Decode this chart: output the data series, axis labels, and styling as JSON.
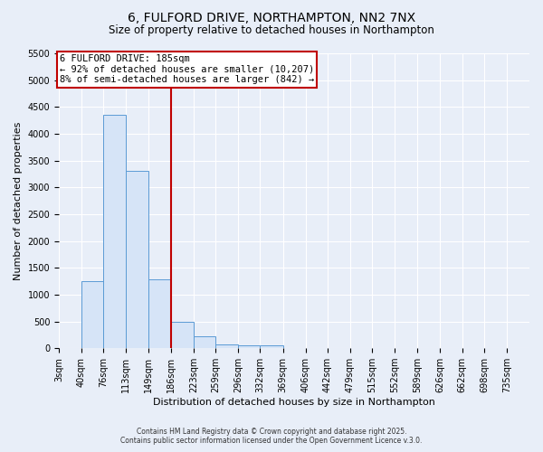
{
  "title_line1": "6, FULFORD DRIVE, NORTHAMPTON, NN2 7NX",
  "title_line2": "Size of property relative to detached houses in Northampton",
  "xlabel": "Distribution of detached houses by size in Northampton",
  "ylabel": "Number of detached properties",
  "bins": [
    3,
    40,
    76,
    113,
    149,
    186,
    223,
    259,
    296,
    332,
    369,
    406,
    442,
    479,
    515,
    552,
    589,
    626,
    662,
    698,
    735
  ],
  "bin_labels": [
    "3sqm",
    "40sqm",
    "76sqm",
    "113sqm",
    "149sqm",
    "186sqm",
    "223sqm",
    "259sqm",
    "296sqm",
    "332sqm",
    "369sqm",
    "406sqm",
    "442sqm",
    "479sqm",
    "515sqm",
    "552sqm",
    "589sqm",
    "626sqm",
    "662sqm",
    "698sqm",
    "735sqm"
  ],
  "values": [
    0,
    1250,
    4350,
    3300,
    1280,
    500,
    215,
    75,
    50,
    50,
    0,
    0,
    0,
    0,
    0,
    0,
    0,
    0,
    0,
    0
  ],
  "bar_color": "#d6e4f7",
  "bar_edge_color": "#5b9bd5",
  "property_line_x": 186,
  "property_line_color": "#c00000",
  "annotation_line1": "6 FULFORD DRIVE: 185sqm",
  "annotation_line2": "← 92% of detached houses are smaller (10,207)",
  "annotation_line3": "8% of semi-detached houses are larger (842) →",
  "annotation_box_color": "#ffffff",
  "annotation_box_edge_color": "#c00000",
  "ylim": [
    0,
    5500
  ],
  "yticks": [
    0,
    500,
    1000,
    1500,
    2000,
    2500,
    3000,
    3500,
    4000,
    4500,
    5000,
    5500
  ],
  "background_color": "#e8eef8",
  "grid_color": "#ffffff",
  "footer_line1": "Contains HM Land Registry data © Crown copyright and database right 2025.",
  "footer_line2": "Contains public sector information licensed under the Open Government Licence v.3.0.",
  "title_fontsize": 10,
  "subtitle_fontsize": 8.5,
  "axis_label_fontsize": 8,
  "tick_fontsize": 7,
  "annot_fontsize": 7.5
}
